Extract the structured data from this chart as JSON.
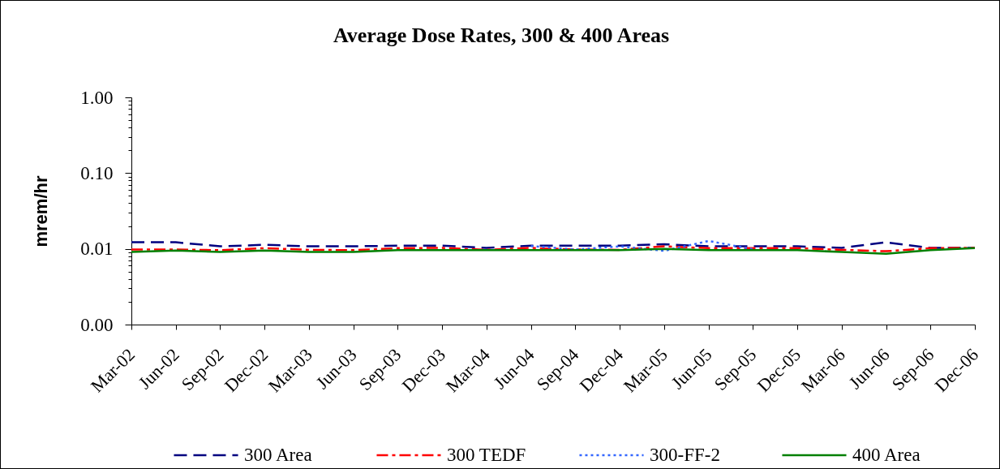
{
  "chart_data": {
    "type": "line",
    "title": "Average Dose Rates, 300 & 400 Areas",
    "ylabel": "mrem/hr",
    "categories": [
      "Mar-02",
      "Jun-02",
      "Sep-02",
      "Dec-02",
      "Mar-03",
      "Jun-03",
      "Sep-03",
      "Dec-03",
      "Mar-04",
      "Jun-04",
      "Sep-04",
      "Dec-04",
      "Mar-05",
      "Jun-05",
      "Sep-05",
      "Dec-05",
      "Mar-06",
      "Jun-06",
      "Sep-06",
      "Dec-06"
    ],
    "series": [
      {
        "name": "300 Area",
        "color": "#000080",
        "line_style": "dashed",
        "values": [
          0.0122,
          0.0122,
          0.0108,
          0.0113,
          0.0108,
          0.0108,
          0.011,
          0.011,
          0.0103,
          0.011,
          0.011,
          0.011,
          0.0115,
          0.0108,
          0.0108,
          0.0108,
          0.0103,
          0.0122,
          0.0103,
          0.0103
        ]
      },
      {
        "name": "300 TEDF",
        "color": "#ff0000",
        "line_style": "dashdot",
        "values": [
          0.0098,
          0.0098,
          0.0096,
          0.0102,
          0.0097,
          0.0096,
          0.0102,
          0.0103,
          0.0097,
          0.0103,
          0.0098,
          0.0097,
          0.0108,
          0.0102,
          0.0102,
          0.0102,
          0.0097,
          0.0093,
          0.0102,
          0.0103
        ]
      },
      {
        "name": "300-FF-2",
        "color": "#3366ff",
        "line_style": "dotted",
        "values": [
          null,
          null,
          null,
          null,
          null,
          null,
          null,
          null,
          null,
          0.0109,
          0.0098,
          0.0108,
          0.0094,
          0.0127,
          0.0099,
          null,
          null,
          null,
          null,
          null
        ]
      },
      {
        "name": "400 Area",
        "color": "#008000",
        "line_style": "solid",
        "values": [
          0.0091,
          0.0095,
          0.0091,
          0.0095,
          0.0091,
          0.0091,
          0.0096,
          0.0096,
          0.0096,
          0.0096,
          0.0096,
          0.0096,
          0.01,
          0.0096,
          0.0096,
          0.0096,
          0.0091,
          0.0086,
          0.0096,
          0.0102
        ]
      }
    ],
    "log": true,
    "ylim": [
      0.001,
      1
    ],
    "yticks": [
      {
        "value": 0.001,
        "label": "0.00"
      },
      {
        "value": 0.002,
        "label": null
      },
      {
        "value": 0.003,
        "label": null
      },
      {
        "value": 0.004,
        "label": null
      },
      {
        "value": 0.005,
        "label": null
      },
      {
        "value": 0.006,
        "label": null
      },
      {
        "value": 0.007,
        "label": null
      },
      {
        "value": 0.008,
        "label": null
      },
      {
        "value": 0.009,
        "label": null
      },
      0.01,
      {
        "value": 0.02,
        "label": null
      },
      {
        "value": 0.03,
        "label": null
      },
      {
        "value": 0.04,
        "label": null
      },
      {
        "value": 0.05,
        "label": null
      },
      {
        "value": 0.06,
        "label": null
      },
      {
        "value": 0.07,
        "label": null
      },
      {
        "value": 0.08,
        "label": null
      },
      {
        "value": 0.09,
        "label": null
      },
      {
        "value": 0.1,
        "label": "0.10"
      },
      {
        "value": 0.2,
        "label": null
      },
      {
        "value": 0.3,
        "label": null
      },
      {
        "value": 0.4,
        "label": null
      },
      {
        "value": 0.5,
        "label": null
      },
      {
        "value": 0.6,
        "label": null
      },
      {
        "value": 0.7,
        "label": null
      },
      {
        "value": 0.8,
        "label": null
      },
      {
        "value": 0.9,
        "label": null
      },
      {
        "value": 1,
        "label": "1.00"
      }
    ],
    "legend": "bottom"
  }
}
